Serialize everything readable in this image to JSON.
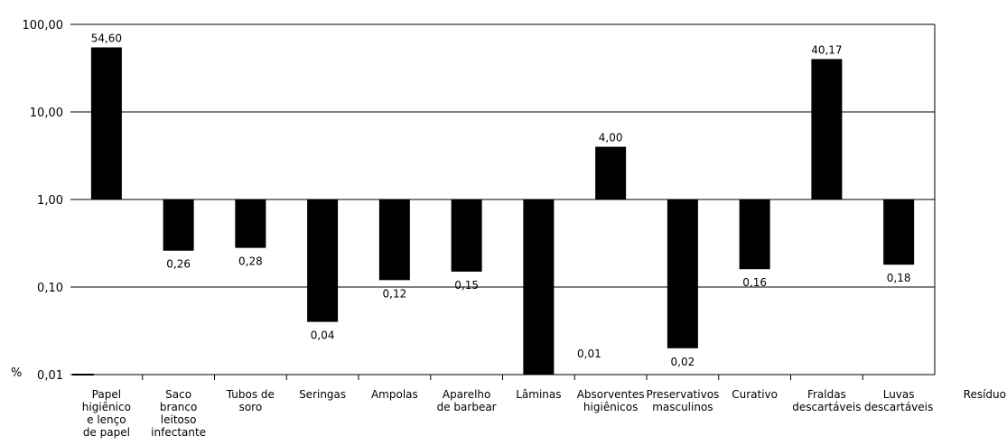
{
  "chart_data": {
    "type": "bar",
    "yscale": "log",
    "ylim": [
      0.01,
      100
    ],
    "grid": true,
    "yticks": [
      100,
      10,
      1,
      0.1,
      0.01
    ],
    "ytick_labels": [
      "100,00",
      "10,00",
      "1,00",
      "0,10",
      "0,01"
    ],
    "ylabel": "%",
    "xlabel": "Resíduo",
    "categories": [
      [
        "Papel",
        "higiênico",
        "e lenço",
        "de papel"
      ],
      [
        "Saco",
        "branco",
        "leitoso",
        "infectante"
      ],
      [
        "Tubos de",
        "soro"
      ],
      [
        "Seringas"
      ],
      [
        "Ampolas"
      ],
      [
        "Aparelho",
        "de barbear"
      ],
      [
        "Lâminas"
      ],
      [
        "Absorventes",
        "higiênicos"
      ],
      [
        "Preservativos",
        "masculinos"
      ],
      [
        "Curativo"
      ],
      [
        "Fraldas",
        "descartáveis"
      ],
      [
        "Luvas",
        "descartáveis"
      ]
    ],
    "values": [
      54.6,
      0.26,
      0.28,
      0.04,
      0.12,
      0.15,
      0.01,
      4.0,
      0.02,
      0.16,
      40.17,
      0.18
    ],
    "value_labels": [
      "54,60",
      "0,26",
      "0,28",
      "0,04",
      "0,12",
      "0,15",
      "0,01",
      "4,00",
      "0,02",
      "0,16",
      "40,17",
      "0,18"
    ],
    "bar_color": "#000000",
    "grid_color": "#000000"
  }
}
